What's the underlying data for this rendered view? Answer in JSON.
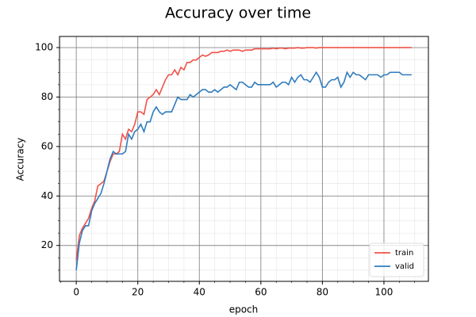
{
  "chart_data": {
    "type": "line",
    "title": "Accuracy over time",
    "x_label": "epoch",
    "y_label": "Accuracy",
    "x": [
      0,
      1,
      2,
      3,
      4,
      5,
      6,
      7,
      8,
      9,
      10,
      11,
      12,
      13,
      14,
      15,
      16,
      17,
      18,
      19,
      20,
      21,
      22,
      23,
      24,
      25,
      26,
      27,
      28,
      29,
      30,
      31,
      32,
      33,
      34,
      35,
      36,
      37,
      38,
      39,
      40,
      41,
      42,
      43,
      44,
      45,
      46,
      47,
      48,
      49,
      50,
      51,
      52,
      53,
      54,
      55,
      56,
      57,
      58,
      59,
      60,
      61,
      62,
      63,
      64,
      65,
      66,
      67,
      68,
      69,
      70,
      71,
      72,
      73,
      74,
      75,
      76,
      77,
      78,
      79,
      80,
      81,
      82,
      83,
      84,
      85,
      86,
      87,
      88,
      89,
      90,
      91,
      92,
      93,
      94,
      95,
      96,
      97,
      98,
      99,
      100,
      101,
      102,
      103,
      104,
      105,
      106,
      107,
      108,
      109
    ],
    "series": [
      {
        "name": "train",
        "color": "#f0524a",
        "values": [
          14,
          24,
          27,
          29,
          31,
          35,
          38,
          44,
          45,
          46,
          50,
          54,
          57,
          57,
          58,
          65,
          63,
          67,
          66,
          69,
          74,
          74,
          73,
          79,
          80,
          81,
          83,
          81,
          84,
          87,
          89,
          89,
          91,
          89,
          92,
          91,
          94,
          94,
          95,
          95,
          96,
          97,
          96.5,
          97,
          98,
          98,
          98,
          98.5,
          98.5,
          99,
          98.5,
          99,
          99,
          99,
          98.5,
          99,
          99,
          99,
          99.5,
          99.5,
          99.5,
          99.5,
          99.5,
          99.5,
          99.8,
          99.5,
          99.8,
          99.8,
          99.5,
          99.8,
          99.8,
          99.8,
          100,
          99.8,
          99.8,
          100,
          100,
          100,
          99.8,
          100,
          100,
          100,
          100,
          100,
          100,
          100,
          100,
          100,
          100,
          100,
          100,
          100,
          100,
          100,
          100,
          100,
          100,
          100,
          100,
          100,
          100,
          100,
          100,
          100,
          100,
          100,
          100,
          100,
          100,
          100
        ]
      },
      {
        "name": "valid",
        "color": "#2f7bbf",
        "values": [
          10,
          21,
          26,
          28,
          28,
          34,
          37,
          39,
          41,
          45,
          50,
          55,
          58,
          57,
          57,
          57,
          58,
          65,
          63,
          66,
          67,
          69,
          66,
          70,
          70,
          74,
          76,
          74,
          73,
          74,
          74,
          74,
          77,
          80,
          79,
          79,
          79,
          81,
          80,
          81,
          82,
          83,
          83,
          82,
          82,
          83,
          82,
          83,
          84,
          84,
          85,
          84,
          83,
          86,
          86,
          85,
          84,
          84,
          86,
          85,
          85,
          85,
          85,
          85,
          86,
          84,
          85,
          86,
          86,
          85,
          88,
          86,
          88,
          89,
          87,
          87,
          86,
          88,
          90,
          88,
          84,
          84,
          86,
          87,
          87,
          88,
          84,
          86,
          90,
          88,
          90,
          89,
          89,
          88,
          87,
          89,
          89,
          89,
          89,
          88,
          89,
          89,
          90,
          90,
          90,
          90,
          89,
          89,
          89,
          89
        ]
      }
    ],
    "xlim": [
      -5.45,
      114.45
    ],
    "ylim": [
      5.5,
      104.5
    ],
    "xticks": [
      0,
      20,
      40,
      60,
      80,
      100
    ],
    "yticks": [
      20,
      40,
      60,
      80,
      100
    ],
    "xminorticks": [
      -5,
      5,
      10,
      15,
      25,
      30,
      35,
      45,
      50,
      55,
      65,
      70,
      75,
      85,
      90,
      95,
      105,
      110
    ],
    "yminorticks": [
      10,
      15,
      25,
      30,
      35,
      45,
      50,
      55,
      65,
      70,
      75,
      85,
      90,
      95
    ],
    "grid": true,
    "minor_grid": true,
    "legend_position": "lower right"
  }
}
